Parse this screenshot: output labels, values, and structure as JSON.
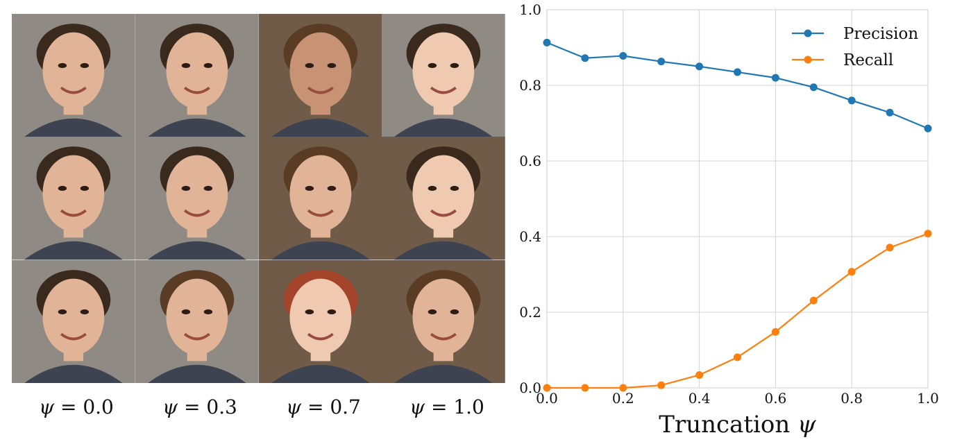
{
  "face_grid": {
    "columns": [
      {
        "psi_symbol": "ψ",
        "psi_value": "= 0.0"
      },
      {
        "psi_symbol": "ψ",
        "psi_value": "= 0.3"
      },
      {
        "psi_symbol": "ψ",
        "psi_value": "= 0.7"
      },
      {
        "psi_symbol": "ψ",
        "psi_value": "= 1.0"
      }
    ],
    "palette": {
      "skin_light": "#e2b497",
      "skin_mid": "#c89274",
      "skin_pale": "#efc9b0",
      "hair_dark": "#3a2a1e",
      "hair_brown": "#5a3b24",
      "hair_red": "#a4442a",
      "bg_gray": "#8f8a84",
      "bg_warm": "#6f5b48"
    }
  },
  "chart_data": {
    "type": "line",
    "title": "",
    "xlabel": "Truncation",
    "xlabel_symbol": "ψ",
    "ylabel": "",
    "x": [
      0.0,
      0.1,
      0.2,
      0.3,
      0.4,
      0.5,
      0.6,
      0.7,
      0.8,
      0.9,
      1.0
    ],
    "xlim": [
      0.0,
      1.0
    ],
    "ylim": [
      0.0,
      1.0
    ],
    "xticks": [
      "0.0",
      "0.2",
      "0.4",
      "0.6",
      "0.8",
      "1.0"
    ],
    "yticks": [
      "0.0",
      "0.2",
      "0.4",
      "0.6",
      "0.8",
      "1.0"
    ],
    "grid": true,
    "legend_position": "top-right",
    "series": [
      {
        "name": "Precision",
        "color": "#1f77b4",
        "values": [
          0.913,
          0.872,
          0.878,
          0.863,
          0.85,
          0.835,
          0.82,
          0.795,
          0.76,
          0.728,
          0.686
        ]
      },
      {
        "name": "Recall",
        "color": "#ff7f0e",
        "values": [
          0.0,
          0.0,
          0.0,
          0.007,
          0.034,
          0.081,
          0.148,
          0.231,
          0.307,
          0.371,
          0.408
        ]
      }
    ]
  }
}
